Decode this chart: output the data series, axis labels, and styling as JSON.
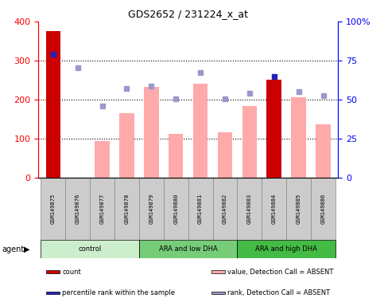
{
  "title": "GDS2652 / 231224_x_at",
  "samples": [
    "GSM149875",
    "GSM149876",
    "GSM149877",
    "GSM149878",
    "GSM149879",
    "GSM149880",
    "GSM149881",
    "GSM149882",
    "GSM149883",
    "GSM149884",
    "GSM149885",
    "GSM149886"
  ],
  "bar_values": [
    375,
    0,
    93,
    165,
    232,
    112,
    240,
    115,
    184,
    250,
    206,
    137
  ],
  "bar_colors": [
    "#cc0000",
    "#ffaaaa",
    "#ffaaaa",
    "#ffaaaa",
    "#ffaaaa",
    "#ffaaaa",
    "#ffaaaa",
    "#ffaaaa",
    "#ffaaaa",
    "#cc0000",
    "#ffaaaa",
    "#ffaaaa"
  ],
  "rank_values": [
    315,
    282,
    184,
    228,
    235,
    201,
    270,
    201,
    216,
    258,
    220,
    210
  ],
  "rank_colors": [
    "#2222bb",
    "#9999cc",
    "#9999cc",
    "#9999cc",
    "#9999cc",
    "#9999cc",
    "#9999cc",
    "#9999cc",
    "#9999cc",
    "#2222bb",
    "#9999cc",
    "#9999cc"
  ],
  "yticks_left": [
    0,
    100,
    200,
    300,
    400
  ],
  "ytick_labels_right": [
    "0",
    "25",
    "50",
    "75",
    "100%"
  ],
  "groups": [
    {
      "label": "control",
      "start": 0,
      "end": 4,
      "color": "#cceecc"
    },
    {
      "label": "ARA and low DHA",
      "start": 4,
      "end": 8,
      "color": "#77cc77"
    },
    {
      "label": "ARA and high DHA",
      "start": 8,
      "end": 12,
      "color": "#44bb44"
    }
  ],
  "agent_label": "agent",
  "legend_items": [
    {
      "color": "#cc0000",
      "label": "count"
    },
    {
      "color": "#2222bb",
      "label": "percentile rank within the sample"
    },
    {
      "color": "#ffaaaa",
      "label": "value, Detection Call = ABSENT"
    },
    {
      "color": "#9999cc",
      "label": "rank, Detection Call = ABSENT"
    }
  ]
}
